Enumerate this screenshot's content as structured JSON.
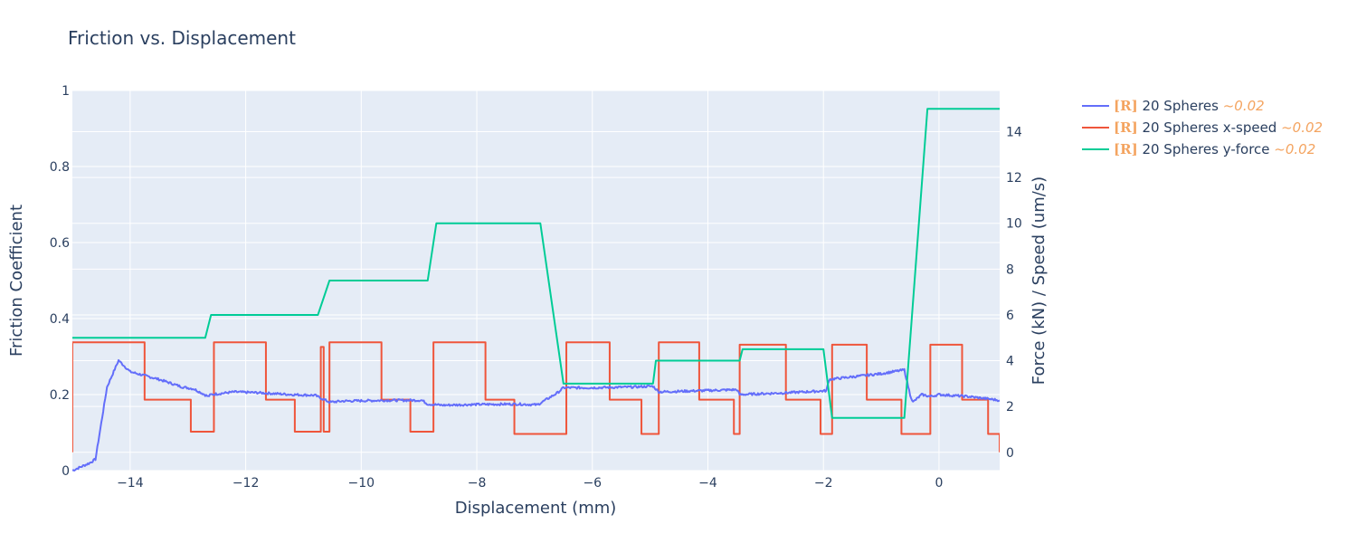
{
  "chart_data": {
    "type": "line",
    "title": "Friction vs. Displacement",
    "xlabel": "Displacement (mm)",
    "ylabel": "Friction Coefficient",
    "y2label": "Force (kN) / Speed (um/s)",
    "xlim": [
      -15,
      1.05
    ],
    "ylim": [
      0,
      1
    ],
    "y2lim": [
      -0.8,
      15.8
    ],
    "x_ticks": [
      -14,
      -12,
      -10,
      -8,
      -6,
      -4,
      -2,
      0
    ],
    "x_tick_labels": [
      "−14",
      "−12",
      "−10",
      "−8",
      "−6",
      "−4",
      "−2",
      "0"
    ],
    "y_ticks": [
      0,
      0.2,
      0.4,
      0.6,
      0.8,
      1
    ],
    "y_tick_labels": [
      "0",
      "0.2",
      "0.4",
      "0.6",
      "0.8",
      "1"
    ],
    "y2_ticks": [
      0,
      2,
      4,
      6,
      8,
      10,
      12,
      14
    ],
    "y2_tick_labels": [
      "0",
      "2",
      "4",
      "6",
      "8",
      "10",
      "12",
      "14"
    ],
    "grid": true,
    "legend_position": "right",
    "colors": {
      "plot_bg": "#e5ecf6",
      "grid": "#ffffff",
      "text": "#2a3f5f",
      "tag": "#f4a460"
    },
    "series": [
      {
        "name": "20 Spheres",
        "tag": "[R]",
        "note": "~0.02",
        "axis": "y",
        "color": "#636efa",
        "noise": 0.003,
        "x": [
          -15,
          -14.7,
          -14.6,
          -14.4,
          -14.2,
          -14.0,
          -13.5,
          -13.1,
          -12.9,
          -12.65,
          -12.6,
          -12.2,
          -11.8,
          -11.2,
          -10.8,
          -10.55,
          -10.3,
          -9.5,
          -8.95,
          -8.85,
          -8.6,
          -8.0,
          -7.3,
          -6.95,
          -6.6,
          -6.5,
          -6.0,
          -5.3,
          -4.95,
          -4.85,
          -3.5,
          -3.45,
          -2.6,
          -1.95,
          -1.9,
          -1.6,
          -1.0,
          -0.6,
          -0.5,
          -0.45,
          -0.3,
          -0.15,
          0,
          0.5,
          1.05
        ],
        "y": [
          0.0,
          0.02,
          0.03,
          0.22,
          0.29,
          0.26,
          0.24,
          0.22,
          0.215,
          0.195,
          0.2,
          0.207,
          0.205,
          0.2,
          0.198,
          0.18,
          0.183,
          0.185,
          0.185,
          0.175,
          0.172,
          0.174,
          0.175,
          0.173,
          0.205,
          0.218,
          0.218,
          0.22,
          0.222,
          0.207,
          0.213,
          0.2,
          0.205,
          0.21,
          0.24,
          0.245,
          0.255,
          0.265,
          0.2,
          0.18,
          0.2,
          0.195,
          0.2,
          0.195,
          0.185
        ]
      },
      {
        "name": "20 Spheres x-speed",
        "tag": "[R]",
        "note": "~0.02",
        "axis": "y2",
        "color": "#ef553b",
        "x": [
          -15,
          -15,
          -13.75,
          -13.75,
          -12.95,
          -12.95,
          -12.55,
          -12.55,
          -11.65,
          -11.65,
          -11.15,
          -11.15,
          -10.7,
          -10.7,
          -10.65,
          -10.65,
          -10.55,
          -10.55,
          -9.65,
          -9.65,
          -9.15,
          -9.15,
          -8.75,
          -8.75,
          -7.85,
          -7.85,
          -7.35,
          -7.35,
          -6.45,
          -6.45,
          -5.7,
          -5.7,
          -5.15,
          -5.15,
          -4.85,
          -4.85,
          -4.15,
          -4.15,
          -3.55,
          -3.55,
          -3.45,
          -3.45,
          -2.65,
          -2.65,
          -2.05,
          -2.05,
          -1.85,
          -1.85,
          -1.25,
          -1.25,
          -0.65,
          -0.65,
          -0.15,
          -0.15,
          0.4,
          0.4,
          0.85,
          0.85,
          1.05,
          1.05
        ],
        "y": [
          0,
          4.8,
          4.8,
          2.3,
          2.3,
          0.9,
          0.9,
          4.8,
          4.8,
          2.3,
          2.3,
          0.9,
          0.9,
          4.6,
          4.6,
          0.9,
          0.9,
          4.8,
          4.8,
          2.3,
          2.3,
          0.9,
          0.9,
          4.8,
          4.8,
          2.3,
          2.3,
          0.8,
          0.8,
          4.8,
          4.8,
          2.3,
          2.3,
          0.8,
          0.8,
          4.8,
          4.8,
          2.3,
          2.3,
          0.8,
          0.8,
          4.7,
          4.7,
          2.3,
          2.3,
          0.8,
          0.8,
          4.7,
          4.7,
          2.3,
          2.3,
          0.8,
          0.8,
          4.7,
          4.7,
          2.3,
          2.3,
          0.8,
          0.8,
          0
        ]
      },
      {
        "name": "20 Spheres y-force",
        "tag": "[R]",
        "note": "~0.02",
        "axis": "y2",
        "color": "#00cc96",
        "x": [
          -15,
          -12.7,
          -12.6,
          -10.75,
          -10.55,
          -8.85,
          -8.7,
          -6.9,
          -6.5,
          -4.95,
          -4.9,
          -3.45,
          -3.4,
          -2.0,
          -1.85,
          -0.6,
          -0.2,
          1.05
        ],
        "y": [
          5.0,
          5.0,
          6.0,
          6.0,
          7.5,
          7.5,
          10.0,
          10.0,
          3.0,
          3.0,
          4.0,
          4.0,
          4.5,
          4.5,
          1.5,
          1.5,
          15.0,
          15.0
        ]
      }
    ]
  }
}
